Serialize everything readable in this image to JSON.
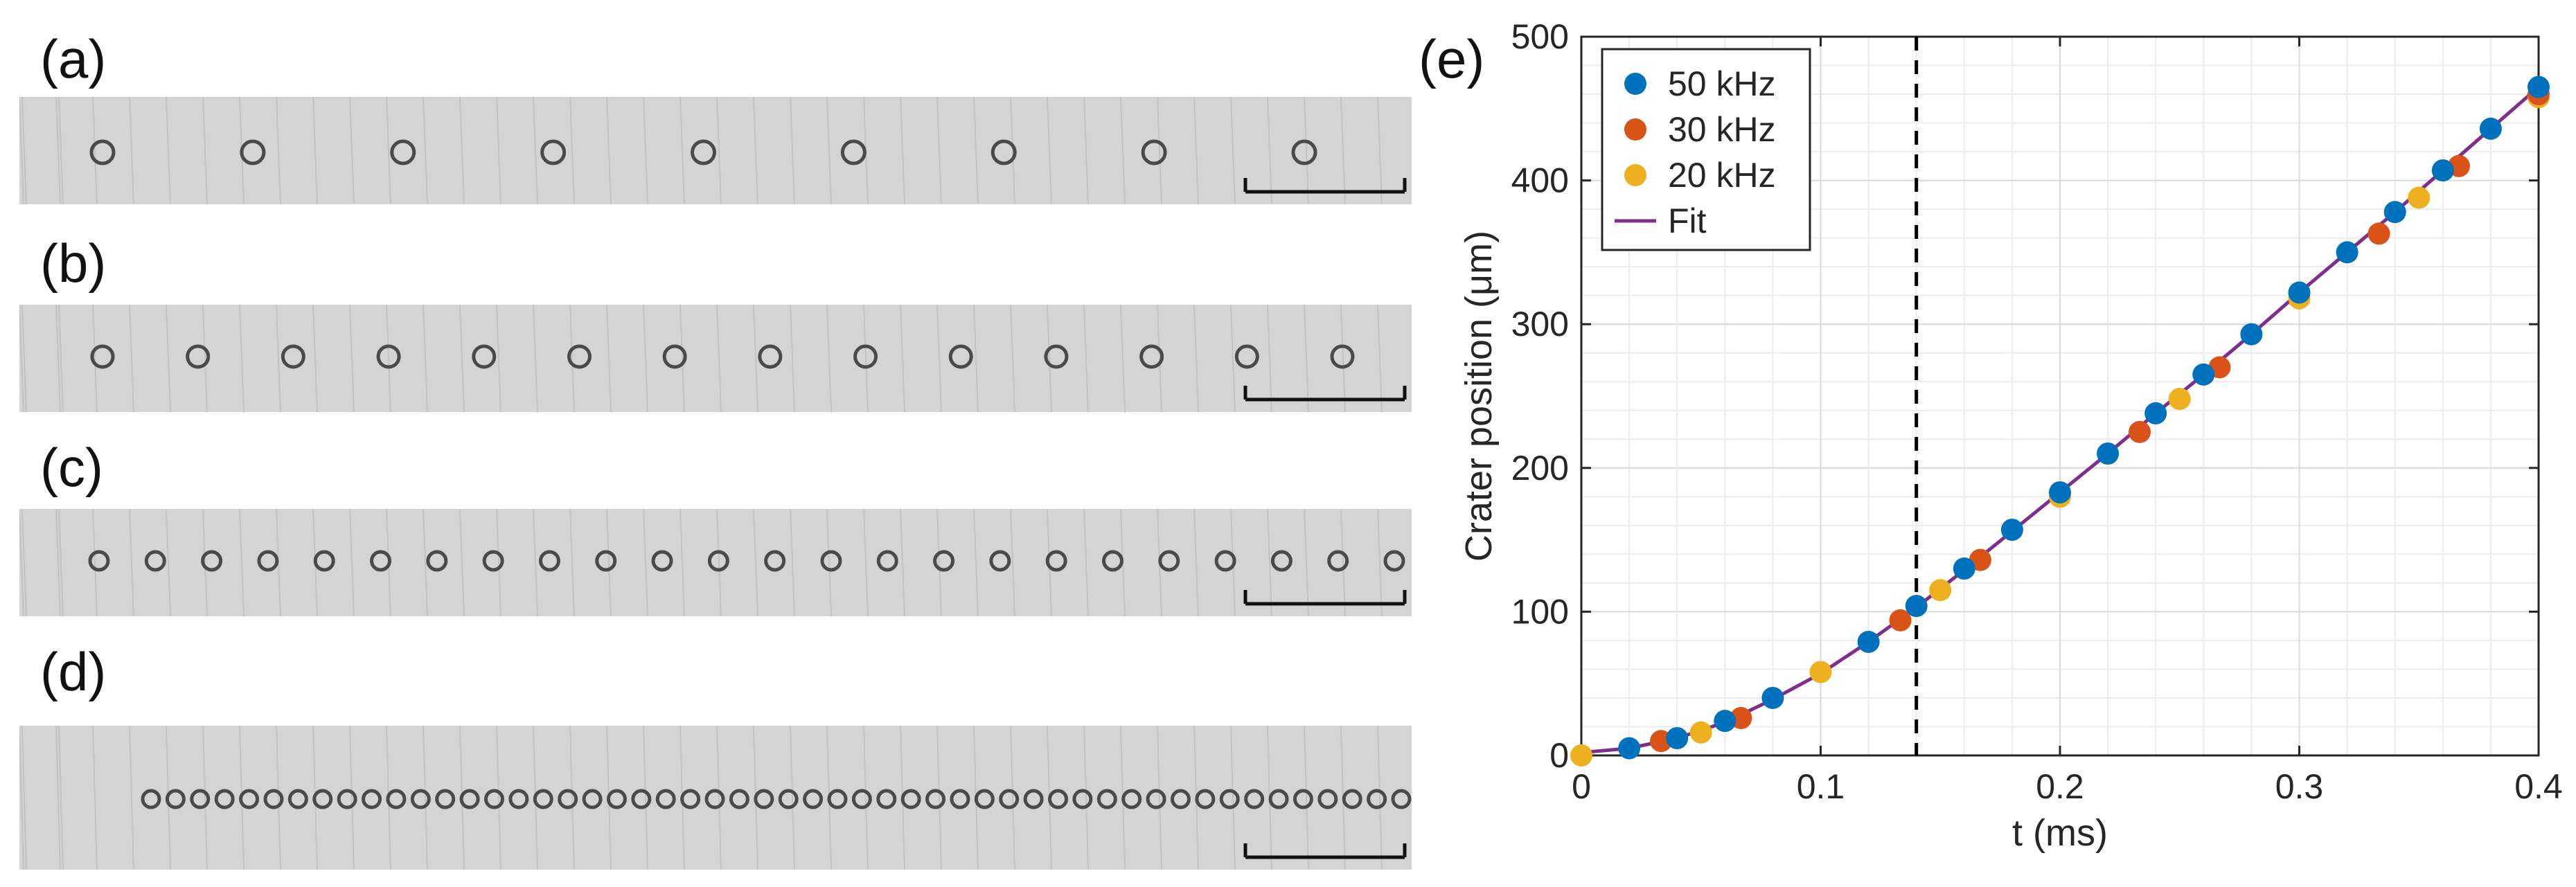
{
  "panels": {
    "a": "(a)",
    "b": "(b)",
    "c": "(c)",
    "d": "(d)",
    "e": "(e)"
  },
  "strips": [
    {
      "id": "a",
      "crater_count": 9
    },
    {
      "id": "b",
      "crater_count": 14
    },
    {
      "id": "c",
      "crater_count": 24
    },
    {
      "id": "d",
      "crater_count": 52
    }
  ],
  "colors": {
    "strip_background": "#d4d4d4",
    "crater": "#4a4a4a",
    "series_50": "#0072BD",
    "series_30": "#D95319",
    "series_20": "#EDB120",
    "fit": "#7E2F8E"
  },
  "chart_data": {
    "type": "scatter",
    "xlabel": "t (ms)",
    "ylabel": "Crater position (μm)",
    "xlim": [
      0,
      0.4
    ],
    "ylim": [
      0,
      500
    ],
    "xticks": [
      0,
      0.1,
      0.2,
      0.3,
      0.4
    ],
    "xtick_labels": [
      "0",
      "0.1",
      "0.2",
      "0.3",
      "0.4"
    ],
    "yticks": [
      0,
      100,
      200,
      300,
      400,
      500
    ],
    "ytick_labels": [
      "0",
      "100",
      "200",
      "300",
      "400",
      "500"
    ],
    "grid": true,
    "legend_position": "top-left",
    "vline_x": 0.14,
    "series": [
      {
        "name": "50 kHz",
        "color": "#0072BD",
        "x": [
          0.02,
          0.04,
          0.06,
          0.08,
          0.12,
          0.14,
          0.16,
          0.18,
          0.2,
          0.22,
          0.24,
          0.26,
          0.28,
          0.3,
          0.32,
          0.34,
          0.36,
          0.38,
          0.4
        ],
        "y": [
          5,
          12,
          24,
          40,
          79,
          104,
          130,
          157,
          183,
          210,
          238,
          265,
          293,
          322,
          350,
          378,
          407,
          436,
          465
        ]
      },
      {
        "name": "30 kHz",
        "color": "#D95319",
        "x": [
          0.0333,
          0.0667,
          0.1333,
          0.1667,
          0.2333,
          0.2667,
          0.3333,
          0.3667,
          0.4
        ],
        "y": [
          10,
          26,
          94,
          136,
          225,
          270,
          363,
          410,
          460
        ]
      },
      {
        "name": "20 kHz",
        "color": "#EDB120",
        "x": [
          0,
          0.05,
          0.1,
          0.15,
          0.2,
          0.25,
          0.3,
          0.35,
          0.4
        ],
        "y": [
          0,
          16,
          58,
          115,
          180,
          248,
          318,
          388,
          458
        ]
      }
    ],
    "fit": {
      "name": "Fit",
      "color": "#7E2F8E",
      "x": [
        0,
        0.02,
        0.04,
        0.06,
        0.08,
        0.1,
        0.12,
        0.14,
        0.16,
        0.18,
        0.2,
        0.22,
        0.24,
        0.26,
        0.28,
        0.3,
        0.32,
        0.34,
        0.36,
        0.38,
        0.4
      ],
      "y": [
        2,
        5,
        12,
        23,
        39,
        57,
        79,
        103,
        129,
        156,
        183,
        210,
        238,
        265,
        293,
        322,
        350,
        378,
        407,
        436,
        465
      ]
    }
  }
}
